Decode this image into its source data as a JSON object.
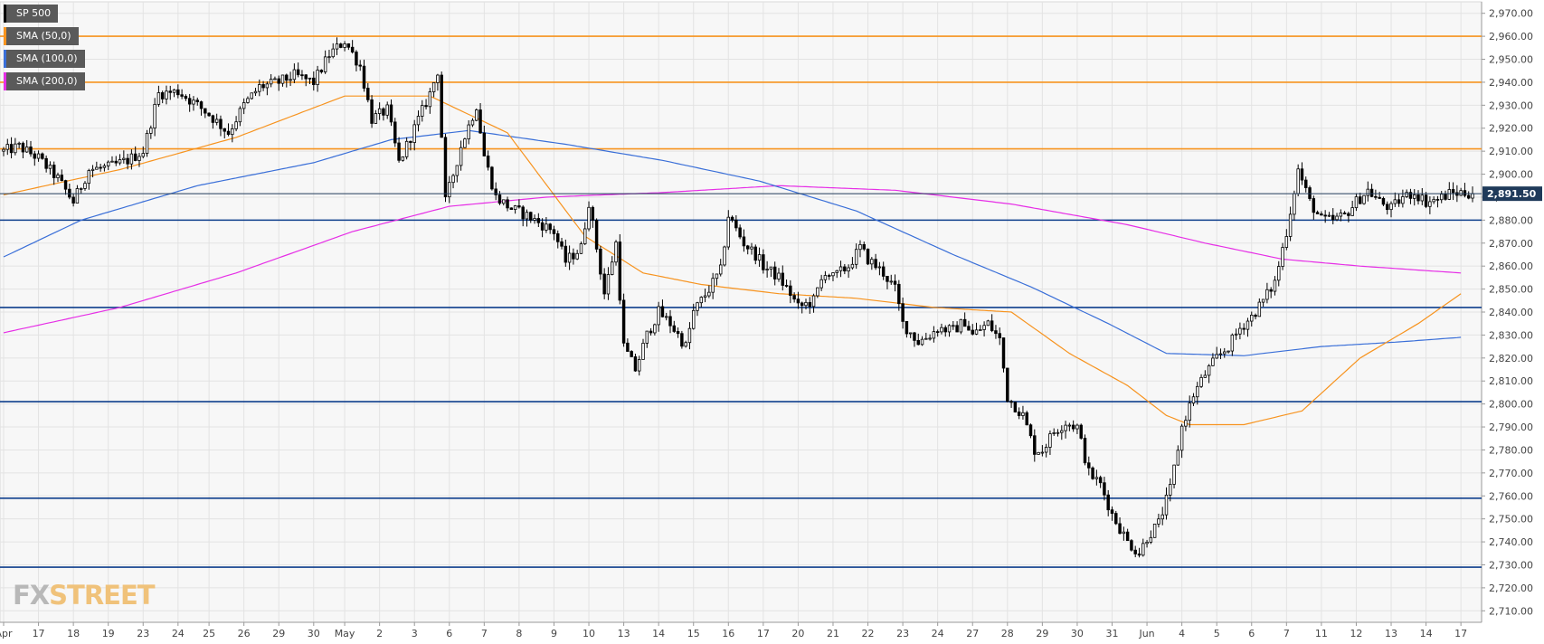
{
  "legend": [
    {
      "label": "SP 500",
      "color": "#000000"
    },
    {
      "label": "SMA (50,0)",
      "color": "#f7931e"
    },
    {
      "label": "SMA (100,0)",
      "color": "#3a6fd8"
    },
    {
      "label": "SMA (200,0)",
      "color": "#e62ee6"
    }
  ],
  "watermark": {
    "fx": "FX",
    "street": "STREET"
  },
  "current_price": "2,891.50",
  "colors": {
    "resistance": "#f7931e",
    "support": "#0e3e8c",
    "sma50": "#f7931e",
    "sma100": "#3a6fd8",
    "sma200": "#e62ee6",
    "candle_up": "#ffffff",
    "candle_down": "#000000",
    "background": "#f7f7f7",
    "grid": "#e3e3e3",
    "price_badge": "#1f3a5a"
  },
  "chart_data": {
    "type": "candlestick",
    "title": "SP 500",
    "ylim": [
      2705,
      2975
    ],
    "y_ticks": [
      "2,710.00",
      "2,720.00",
      "2,730.00",
      "2,740.00",
      "2,750.00",
      "2,760.00",
      "2,770.00",
      "2,780.00",
      "2,790.00",
      "2,800.00",
      "2,810.00",
      "2,820.00",
      "2,830.00",
      "2,840.00",
      "2,850.00",
      "2,860.00",
      "2,870.00",
      "2,880.00",
      "2,890.00",
      "2,900.00",
      "2,910.00",
      "2,920.00",
      "2,930.00",
      "2,940.00",
      "2,950.00",
      "2,960.00",
      "2,970.00"
    ],
    "y_tick_values": [
      2710,
      2720,
      2730,
      2740,
      2750,
      2760,
      2770,
      2780,
      2790,
      2800,
      2810,
      2820,
      2830,
      2840,
      2850,
      2860,
      2870,
      2880,
      2890,
      2900,
      2910,
      2920,
      2930,
      2940,
      2950,
      2960,
      2970
    ],
    "x_ticks": [
      "Apr",
      "17",
      "18",
      "19",
      "23",
      "24",
      "25",
      "26",
      "29",
      "30",
      "May",
      "2",
      "3",
      "6",
      "7",
      "8",
      "9",
      "10",
      "13",
      "14",
      "15",
      "16",
      "17",
      "20",
      "21",
      "22",
      "23",
      "24",
      "27",
      "28",
      "29",
      "30",
      "31",
      "Jun",
      "4",
      "5",
      "6",
      "7",
      "11",
      "12",
      "13",
      "14",
      "17"
    ],
    "x_tick_bar_index": [
      0,
      9,
      18,
      27,
      36,
      45,
      53,
      62,
      71,
      80,
      88,
      97,
      106,
      115,
      124,
      133,
      142,
      151,
      160,
      169,
      178,
      187,
      196,
      205,
      214,
      223,
      232,
      241,
      250,
      259,
      268,
      277,
      286,
      295,
      304,
      313,
      322,
      331,
      340,
      349,
      358,
      367,
      376
    ],
    "bar_count": 380,
    "resistance_levels": [
      2960,
      2940,
      2911
    ],
    "support_levels": [
      2880,
      2842,
      2801,
      2759,
      2729
    ],
    "last_price": 2891.5,
    "price_path": [
      [
        0,
        2910
      ],
      [
        4,
        2912
      ],
      [
        9,
        2907
      ],
      [
        14,
        2898
      ],
      [
        18,
        2888
      ],
      [
        22,
        2902
      ],
      [
        27,
        2903
      ],
      [
        32,
        2906
      ],
      [
        36,
        2910
      ],
      [
        40,
        2935
      ],
      [
        45,
        2936
      ],
      [
        50,
        2930
      ],
      [
        53,
        2926
      ],
      [
        58,
        2918
      ],
      [
        62,
        2930
      ],
      [
        66,
        2938
      ],
      [
        71,
        2940
      ],
      [
        75,
        2943
      ],
      [
        80,
        2940
      ],
      [
        84,
        2952
      ],
      [
        88,
        2958
      ],
      [
        92,
        2947
      ],
      [
        95,
        2924
      ],
      [
        99,
        2928
      ],
      [
        102,
        2905
      ],
      [
        106,
        2920
      ],
      [
        110,
        2935
      ],
      [
        112,
        2945
      ],
      [
        114,
        2888
      ],
      [
        118,
        2912
      ],
      [
        122,
        2930
      ],
      [
        124,
        2908
      ],
      [
        127,
        2890
      ],
      [
        131,
        2885
      ],
      [
        135,
        2882
      ],
      [
        139,
        2878
      ],
      [
        142,
        2875
      ],
      [
        145,
        2862
      ],
      [
        149,
        2868
      ],
      [
        151,
        2888
      ],
      [
        155,
        2848
      ],
      [
        158,
        2870
      ],
      [
        160,
        2825
      ],
      [
        163,
        2815
      ],
      [
        166,
        2830
      ],
      [
        169,
        2840
      ],
      [
        172,
        2835
      ],
      [
        176,
        2825
      ],
      [
        178,
        2840
      ],
      [
        182,
        2850
      ],
      [
        185,
        2858
      ],
      [
        187,
        2882
      ],
      [
        191,
        2870
      ],
      [
        194,
        2865
      ],
      [
        196,
        2860
      ],
      [
        200,
        2855
      ],
      [
        203,
        2848
      ],
      [
        205,
        2842
      ],
      [
        209,
        2845
      ],
      [
        212,
        2858
      ],
      [
        214,
        2855
      ],
      [
        218,
        2860
      ],
      [
        221,
        2868
      ],
      [
        223,
        2863
      ],
      [
        227,
        2857
      ],
      [
        230,
        2850
      ],
      [
        232,
        2835
      ],
      [
        236,
        2827
      ],
      [
        239,
        2830
      ],
      [
        241,
        2833
      ],
      [
        245,
        2832
      ],
      [
        248,
        2836
      ],
      [
        250,
        2830
      ],
      [
        254,
        2835
      ],
      [
        257,
        2828
      ],
      [
        259,
        2803
      ],
      [
        263,
        2795
      ],
      [
        266,
        2780
      ],
      [
        268,
        2780
      ],
      [
        271,
        2788
      ],
      [
        274,
        2792
      ],
      [
        277,
        2790
      ],
      [
        280,
        2770
      ],
      [
        283,
        2765
      ],
      [
        286,
        2752
      ],
      [
        290,
        2740
      ],
      [
        293,
        2735
      ],
      [
        295,
        2742
      ],
      [
        298,
        2748
      ],
      [
        301,
        2763
      ],
      [
        304,
        2790
      ],
      [
        307,
        2804
      ],
      [
        310,
        2813
      ],
      [
        313,
        2820
      ],
      [
        316,
        2825
      ],
      [
        319,
        2833
      ],
      [
        322,
        2838
      ],
      [
        325,
        2845
      ],
      [
        328,
        2853
      ],
      [
        331,
        2875
      ],
      [
        334,
        2902
      ],
      [
        337,
        2888
      ],
      [
        340,
        2880
      ],
      [
        343,
        2880
      ],
      [
        346,
        2882
      ],
      [
        349,
        2888
      ],
      [
        352,
        2893
      ],
      [
        355,
        2888
      ],
      [
        358,
        2885
      ],
      [
        361,
        2890
      ],
      [
        364,
        2892
      ],
      [
        367,
        2888
      ],
      [
        370,
        2889
      ],
      [
        373,
        2891.5
      ],
      [
        376,
        2892
      ],
      [
        379,
        2891.5
      ]
    ],
    "sma50": [
      [
        0,
        2891
      ],
      [
        30,
        2902
      ],
      [
        60,
        2916
      ],
      [
        88,
        2934
      ],
      [
        110,
        2934
      ],
      [
        130,
        2918
      ],
      [
        150,
        2873
      ],
      [
        165,
        2857
      ],
      [
        180,
        2852
      ],
      [
        200,
        2848
      ],
      [
        220,
        2846
      ],
      [
        240,
        2842
      ],
      [
        260,
        2840
      ],
      [
        275,
        2822
      ],
      [
        290,
        2808
      ],
      [
        300,
        2795
      ],
      [
        306,
        2791
      ],
      [
        320,
        2791
      ],
      [
        335,
        2797
      ],
      [
        350,
        2820
      ],
      [
        365,
        2835
      ],
      [
        376,
        2848
      ]
    ],
    "sma100": [
      [
        0,
        2864
      ],
      [
        20,
        2880
      ],
      [
        50,
        2895
      ],
      [
        80,
        2905
      ],
      [
        100,
        2915
      ],
      [
        120,
        2919
      ],
      [
        145,
        2913
      ],
      [
        170,
        2906
      ],
      [
        195,
        2897
      ],
      [
        220,
        2884
      ],
      [
        245,
        2865
      ],
      [
        265,
        2851
      ],
      [
        285,
        2835
      ],
      [
        300,
        2822
      ],
      [
        320,
        2821
      ],
      [
        340,
        2825
      ],
      [
        360,
        2827
      ],
      [
        376,
        2829
      ]
    ],
    "sma200": [
      [
        0,
        2831
      ],
      [
        30,
        2842
      ],
      [
        60,
        2857
      ],
      [
        90,
        2875
      ],
      [
        115,
        2886
      ],
      [
        140,
        2890
      ],
      [
        170,
        2892
      ],
      [
        200,
        2895
      ],
      [
        230,
        2893
      ],
      [
        260,
        2887
      ],
      [
        290,
        2878
      ],
      [
        310,
        2870
      ],
      [
        330,
        2863
      ],
      [
        350,
        2860
      ],
      [
        376,
        2857
      ]
    ]
  }
}
